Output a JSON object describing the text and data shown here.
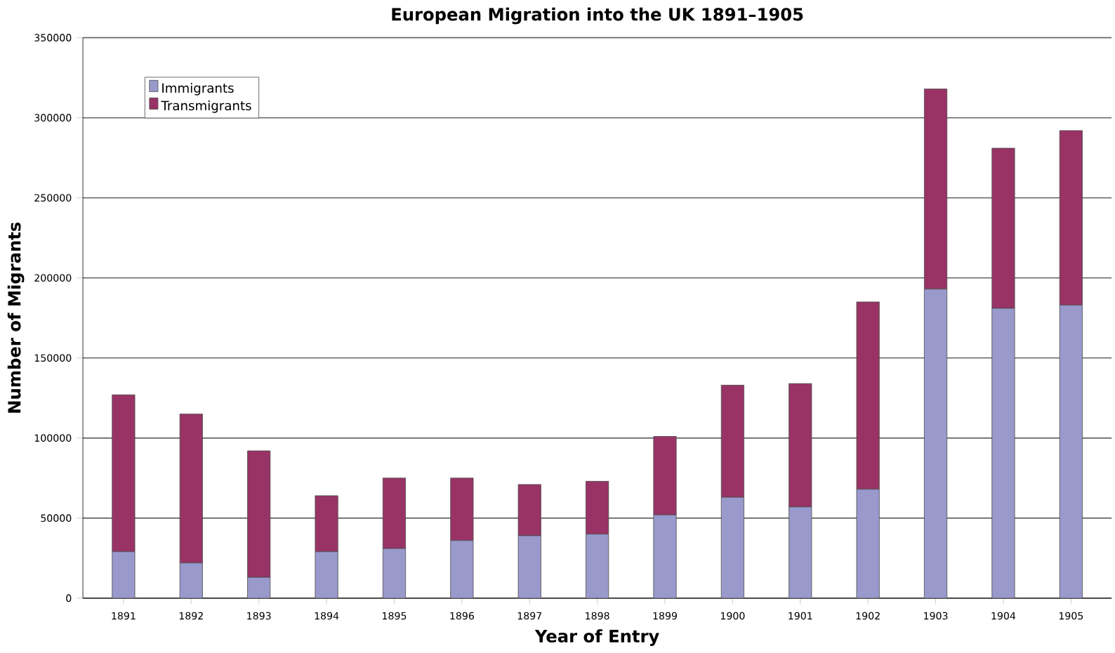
{
  "chart_data": {
    "type": "bar",
    "stacked": true,
    "title": "European Migration into the UK  1891–1905",
    "xlabel": "Year of Entry",
    "ylabel": "Number of Migrants",
    "categories": [
      "1891",
      "1892",
      "1893",
      "1894",
      "1895",
      "1896",
      "1897",
      "1898",
      "1899",
      "1900",
      "1901",
      "1902",
      "1903",
      "1904",
      "1905"
    ],
    "series": [
      {
        "name": "Immigrants",
        "color": "#9999cc",
        "values": [
          29000,
          22000,
          13000,
          29000,
          31000,
          36000,
          39000,
          40000,
          52000,
          63000,
          57000,
          68000,
          193000,
          181000,
          183000
        ]
      },
      {
        "name": "Transmigrants",
        "color": "#993366",
        "values": [
          98000,
          93000,
          79000,
          35000,
          44000,
          39000,
          32000,
          33000,
          49000,
          70000,
          77000,
          117000,
          125000,
          100000,
          109000
        ]
      }
    ],
    "ylim": [
      0,
      350000
    ],
    "yticks": [
      0,
      50000,
      100000,
      150000,
      200000,
      250000,
      300000,
      350000
    ],
    "grid": "y",
    "legend": "top left"
  }
}
